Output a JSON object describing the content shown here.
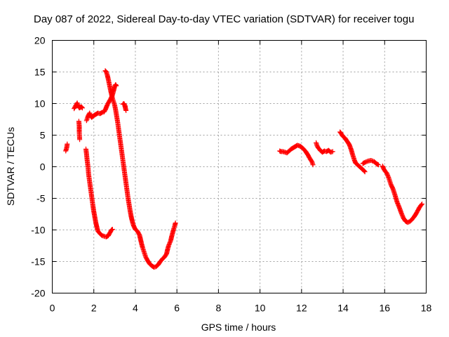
{
  "chart_data": {
    "type": "scatter",
    "title": "Day 087 of 2022, Sidereal Day-to-day VTEC variation (SDTVAR) for receiver togu",
    "xlabel": "GPS time / hours",
    "ylabel": "SDTVAR / TECUs",
    "xlim": [
      0,
      18
    ],
    "ylim": [
      -20,
      20
    ],
    "xticks": [
      0,
      2,
      4,
      6,
      8,
      10,
      12,
      14,
      16,
      18
    ],
    "yticks": [
      -20,
      -15,
      -10,
      -5,
      0,
      5,
      10,
      15,
      20
    ],
    "grid": true,
    "marker": "+",
    "color": "#ff0000",
    "series": [
      {
        "name": "seg1",
        "points": [
          [
            0.65,
            2.5
          ],
          [
            0.7,
            3.1
          ],
          [
            0.72,
            3.6
          ]
        ]
      },
      {
        "name": "seg2",
        "points": [
          [
            1.05,
            9.2
          ],
          [
            1.1,
            9.5
          ],
          [
            1.15,
            9.8
          ],
          [
            1.2,
            10.1
          ],
          [
            1.25,
            9.6
          ],
          [
            1.3,
            9.3
          ],
          [
            1.35,
            9.4
          ],
          [
            1.4,
            9.5
          ],
          [
            1.45,
            9.3
          ]
        ]
      },
      {
        "name": "seg3",
        "points": [
          [
            1.28,
            7.2
          ],
          [
            1.3,
            6.4
          ],
          [
            1.3,
            5.5
          ],
          [
            1.32,
            4.3
          ]
        ]
      },
      {
        "name": "seg4",
        "points": [
          [
            1.65,
            7.3
          ],
          [
            1.7,
            7.8
          ],
          [
            1.75,
            8.2
          ],
          [
            1.8,
            8.5
          ],
          [
            1.85,
            8.0
          ],
          [
            1.9,
            7.8
          ],
          [
            2.0,
            8.1
          ],
          [
            2.1,
            8.3
          ],
          [
            2.2,
            8.5
          ],
          [
            2.3,
            8.4
          ],
          [
            2.4,
            8.6
          ],
          [
            2.5,
            8.7
          ],
          [
            2.55,
            9.0
          ],
          [
            2.6,
            9.4
          ],
          [
            2.65,
            9.8
          ],
          [
            2.7,
            10.1
          ],
          [
            2.75,
            10.4
          ],
          [
            2.8,
            10.7
          ],
          [
            2.85,
            11.0
          ],
          [
            2.9,
            11.4
          ],
          [
            2.95,
            12.0
          ],
          [
            3.0,
            12.7
          ],
          [
            3.05,
            13.0
          ],
          [
            3.08,
            12.8
          ]
        ]
      },
      {
        "name": "seg5",
        "points": [
          [
            1.62,
            2.8
          ],
          [
            1.65,
            2.0
          ],
          [
            1.68,
            1.0
          ],
          [
            1.72,
            0.0
          ],
          [
            1.75,
            -1.2
          ],
          [
            1.8,
            -2.4
          ],
          [
            1.85,
            -3.6
          ],
          [
            1.9,
            -4.8
          ],
          [
            1.95,
            -6.0
          ],
          [
            2.0,
            -7.1
          ],
          [
            2.05,
            -8.0
          ],
          [
            2.1,
            -8.9
          ],
          [
            2.15,
            -9.6
          ],
          [
            2.2,
            -10.2
          ],
          [
            2.3,
            -10.6
          ],
          [
            2.4,
            -10.9
          ],
          [
            2.5,
            -11.0
          ],
          [
            2.6,
            -11.1
          ],
          [
            2.7,
            -10.9
          ],
          [
            2.75,
            -10.6
          ],
          [
            2.8,
            -10.3
          ],
          [
            2.85,
            -10.0
          ],
          [
            2.9,
            -9.9
          ]
        ]
      },
      {
        "name": "seg6",
        "points": [
          [
            2.55,
            15.2
          ],
          [
            2.6,
            15.0
          ],
          [
            2.65,
            14.5
          ],
          [
            2.7,
            13.8
          ],
          [
            2.75,
            13.0
          ],
          [
            2.8,
            12.2
          ],
          [
            2.85,
            11.5
          ],
          [
            2.9,
            10.8
          ],
          [
            2.95,
            10.3
          ],
          [
            3.0,
            9.8
          ],
          [
            3.05,
            9.0
          ],
          [
            3.1,
            8.0
          ],
          [
            3.15,
            7.0
          ],
          [
            3.2,
            5.8
          ],
          [
            3.25,
            4.6
          ],
          [
            3.3,
            3.4
          ],
          [
            3.35,
            2.2
          ],
          [
            3.4,
            1.0
          ],
          [
            3.45,
            -0.2
          ],
          [
            3.5,
            -1.4
          ],
          [
            3.55,
            -2.6
          ],
          [
            3.6,
            -3.8
          ],
          [
            3.65,
            -5.0
          ],
          [
            3.7,
            -6.0
          ],
          [
            3.75,
            -7.0
          ],
          [
            3.8,
            -7.9
          ],
          [
            3.85,
            -8.6
          ],
          [
            3.9,
            -9.2
          ],
          [
            3.95,
            -9.6
          ],
          [
            4.0,
            -9.9
          ],
          [
            4.1,
            -10.2
          ],
          [
            4.2,
            -10.8
          ],
          [
            4.25,
            -11.5
          ],
          [
            4.3,
            -12.2
          ],
          [
            4.35,
            -12.8
          ],
          [
            4.4,
            -13.3
          ],
          [
            4.45,
            -13.8
          ],
          [
            4.5,
            -14.3
          ],
          [
            4.6,
            -14.9
          ],
          [
            4.7,
            -15.4
          ],
          [
            4.8,
            -15.7
          ],
          [
            4.9,
            -15.9
          ],
          [
            5.0,
            -15.8
          ],
          [
            5.1,
            -15.5
          ],
          [
            5.2,
            -15.0
          ],
          [
            5.3,
            -14.6
          ],
          [
            5.4,
            -14.3
          ],
          [
            5.5,
            -13.8
          ],
          [
            5.55,
            -13.1
          ],
          [
            5.6,
            -12.5
          ],
          [
            5.7,
            -11.7
          ],
          [
            5.75,
            -11.0
          ],
          [
            5.8,
            -10.4
          ],
          [
            5.85,
            -9.8
          ],
          [
            5.9,
            -9.3
          ],
          [
            5.93,
            -8.9
          ]
        ]
      },
      {
        "name": "seg7",
        "points": [
          [
            3.4,
            9.9
          ],
          [
            3.45,
            10.0
          ],
          [
            3.5,
            9.7
          ],
          [
            3.52,
            9.3
          ],
          [
            3.55,
            8.9
          ]
        ]
      },
      {
        "name": "seg8",
        "points": [
          [
            10.95,
            2.5
          ],
          [
            11.0,
            2.4
          ],
          [
            11.1,
            2.4
          ],
          [
            11.2,
            2.3
          ],
          [
            11.3,
            2.2
          ],
          [
            11.4,
            2.5
          ],
          [
            11.5,
            2.8
          ],
          [
            11.6,
            3.0
          ],
          [
            11.7,
            3.2
          ],
          [
            11.8,
            3.4
          ],
          [
            11.9,
            3.3
          ],
          [
            12.0,
            3.1
          ],
          [
            12.1,
            2.8
          ],
          [
            12.2,
            2.4
          ],
          [
            12.3,
            1.9
          ],
          [
            12.4,
            1.3
          ],
          [
            12.5,
            0.8
          ],
          [
            12.55,
            0.3
          ]
        ]
      },
      {
        "name": "seg9",
        "points": [
          [
            12.7,
            3.8
          ],
          [
            12.75,
            3.3
          ],
          [
            12.8,
            3.0
          ],
          [
            12.9,
            2.6
          ],
          [
            13.0,
            2.3
          ],
          [
            13.1,
            2.5
          ],
          [
            13.2,
            2.4
          ],
          [
            13.3,
            2.6
          ],
          [
            13.4,
            2.3
          ],
          [
            13.5,
            2.4
          ]
        ]
      },
      {
        "name": "seg10",
        "points": [
          [
            13.85,
            5.5
          ],
          [
            13.9,
            5.3
          ],
          [
            13.95,
            5.0
          ],
          [
            14.0,
            4.8
          ],
          [
            14.1,
            4.5
          ],
          [
            14.2,
            4.0
          ],
          [
            14.3,
            3.5
          ],
          [
            14.4,
            2.6
          ],
          [
            14.45,
            2.0
          ],
          [
            14.5,
            1.5
          ],
          [
            14.55,
            1.0
          ],
          [
            14.6,
            0.6
          ],
          [
            14.7,
            0.3
          ],
          [
            14.8,
            0.0
          ],
          [
            14.9,
            -0.3
          ],
          [
            15.0,
            -0.6
          ],
          [
            15.05,
            -0.8
          ]
        ]
      },
      {
        "name": "seg11",
        "points": [
          [
            14.95,
            0.5
          ],
          [
            15.05,
            0.7
          ],
          [
            15.2,
            0.9
          ],
          [
            15.35,
            1.0
          ],
          [
            15.5,
            0.8
          ],
          [
            15.6,
            0.5
          ],
          [
            15.7,
            0.3
          ]
        ]
      },
      {
        "name": "seg12",
        "points": [
          [
            15.9,
            0.1
          ],
          [
            15.95,
            -0.3
          ],
          [
            16.0,
            -0.6
          ],
          [
            16.1,
            -1.0
          ],
          [
            16.2,
            -1.8
          ],
          [
            16.3,
            -2.8
          ],
          [
            16.4,
            -3.5
          ],
          [
            16.5,
            -4.5
          ],
          [
            16.6,
            -5.6
          ],
          [
            16.7,
            -6.4
          ],
          [
            16.8,
            -7.3
          ],
          [
            16.9,
            -8.1
          ],
          [
            17.0,
            -8.6
          ],
          [
            17.1,
            -8.8
          ],
          [
            17.2,
            -8.7
          ],
          [
            17.3,
            -8.4
          ],
          [
            17.4,
            -8.0
          ],
          [
            17.5,
            -7.5
          ],
          [
            17.6,
            -6.9
          ],
          [
            17.7,
            -6.3
          ],
          [
            17.8,
            -5.9
          ]
        ]
      }
    ]
  }
}
